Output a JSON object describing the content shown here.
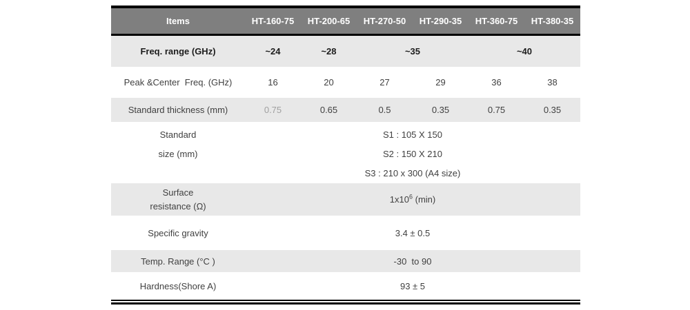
{
  "header": {
    "items_label": "Items",
    "models": [
      "HT-160-75",
      "HT-200-65",
      "HT-270-50",
      "HT-290-35",
      "HT-360-75",
      "HT-380-35"
    ]
  },
  "rows": {
    "freq_range": {
      "label": "Freq. range (GHz)",
      "values": [
        "~24",
        "~28",
        "~35",
        "~40"
      ]
    },
    "peak_center": {
      "label": "Peak &Center  Freq. (GHz)",
      "values": [
        "16",
        "20",
        "27",
        "29",
        "36",
        "38"
      ]
    },
    "thickness": {
      "label": "Standard thickness (mm)",
      "values": [
        "0.75",
        "0.65",
        "0.5",
        "0.35",
        "0.75",
        "0.35"
      ]
    },
    "size": {
      "label_line1": "Standard",
      "label_line2": "size (mm)",
      "values": [
        "S1 : 105 X 150",
        "S2 : 150 X 210",
        "S3 : 210 x 300 (A4 size)"
      ]
    },
    "surface_resistance": {
      "label_line1": "Surface",
      "label_line2": "resistance (Ω)",
      "value_base": "1x10",
      "value_exp": "6",
      "value_suffix": " (min)"
    },
    "specific_gravity": {
      "label": "Specific gravity",
      "value": "3.4 ± 0.5"
    },
    "temp_range": {
      "label": "Temp. Range (°C )",
      "value": "-30  to 90"
    },
    "hardness": {
      "label": "Hardness(Shore A)",
      "value": "93 ± 5"
    }
  },
  "colors": {
    "header_bg": "#7f7f7f",
    "header_text": "#ffffff",
    "stripe_bg": "#e8e8e8",
    "text": "#404040",
    "bold_text": "#1c1c1c",
    "muted_value": "#a0a0a0",
    "border": "#000000"
  },
  "chart_data": {
    "type": "table",
    "columns": [
      "Items",
      "HT-160-75",
      "HT-200-65",
      "HT-270-50",
      "HT-290-35",
      "HT-360-75",
      "HT-380-35"
    ],
    "rows": [
      [
        "Freq. range (GHz)",
        "~24",
        "~28",
        "~35",
        "~35",
        "~40",
        "~40"
      ],
      [
        "Peak &Center Freq. (GHz)",
        "16",
        "20",
        "27",
        "29",
        "36",
        "38"
      ],
      [
        "Standard thickness (mm)",
        "0.75",
        "0.65",
        "0.5",
        "0.35",
        "0.75",
        "0.35"
      ],
      [
        "Standard size (mm)",
        "S1 : 105 X 150 / S2 : 150 X 210 / S3 : 210 x 300 (A4 size)"
      ],
      [
        "Surface resistance (Ω)",
        "1x10^6 (min)"
      ],
      [
        "Specific gravity",
        "3.4 ± 0.5"
      ],
      [
        "Temp. Range (°C )",
        "-30 to 90"
      ],
      [
        "Hardness(Shore A)",
        "93 ± 5"
      ]
    ]
  }
}
